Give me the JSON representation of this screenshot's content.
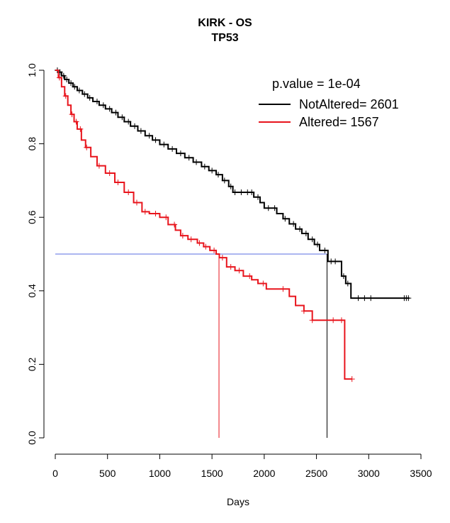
{
  "chart_data": {
    "type": "line",
    "title": "KIRK - OS",
    "subtitle": "TP53",
    "xlabel": "Days",
    "ylabel": "",
    "xlim": [
      0,
      3500
    ],
    "ylim": [
      0,
      1
    ],
    "x_ticks": [
      0,
      500,
      1000,
      1500,
      2000,
      2500,
      3000,
      3500
    ],
    "y_ticks": [
      0.0,
      0.2,
      0.4,
      0.6,
      0.8,
      1.0
    ],
    "y_tick_labels": [
      "0.0",
      "0.2",
      "0.4",
      "0.6",
      "0.8",
      "1.0"
    ],
    "legend": {
      "header": "p.value = 1e-04",
      "placement": "top-right",
      "entries": [
        "NotAltered= 2601",
        "Altered= 1567"
      ]
    },
    "median_line": {
      "y": 0.5,
      "color": "#5a6ee0"
    },
    "series": [
      {
        "name": "NotAltered= 2601",
        "color": "#000000",
        "median": 2601,
        "x": [
          0,
          30,
          60,
          90,
          130,
          170,
          210,
          260,
          310,
          360,
          420,
          480,
          540,
          600,
          660,
          720,
          790,
          860,
          930,
          1000,
          1080,
          1160,
          1240,
          1320,
          1400,
          1470,
          1540,
          1600,
          1660,
          1700,
          1760,
          1830,
          1900,
          1960,
          2000,
          2060,
          2120,
          2180,
          2240,
          2300,
          2360,
          2420,
          2480,
          2530,
          2560,
          2610,
          2740,
          2780,
          2830,
          3390
        ],
        "y": [
          1.0,
          0.995,
          0.985,
          0.975,
          0.965,
          0.955,
          0.945,
          0.935,
          0.925,
          0.915,
          0.905,
          0.895,
          0.885,
          0.872,
          0.86,
          0.848,
          0.835,
          0.822,
          0.81,
          0.798,
          0.786,
          0.774,
          0.762,
          0.75,
          0.738,
          0.727,
          0.716,
          0.7,
          0.684,
          0.668,
          0.668,
          0.668,
          0.655,
          0.64,
          0.625,
          0.625,
          0.61,
          0.596,
          0.582,
          0.568,
          0.556,
          0.54,
          0.526,
          0.51,
          0.51,
          0.48,
          0.44,
          0.42,
          0.38,
          0.38
        ],
        "censor_x": [
          20,
          45,
          80,
          110,
          150,
          185,
          230,
          280,
          330,
          400,
          460,
          520,
          580,
          640,
          700,
          760,
          820,
          900,
          960,
          1040,
          1120,
          1200,
          1280,
          1350,
          1430,
          1500,
          1560,
          1620,
          1680,
          1720,
          1780,
          1840,
          1880,
          1940,
          2040,
          2100,
          2200,
          2280,
          2340,
          2400,
          2460,
          2510,
          2580,
          2640,
          2680,
          2760,
          2800,
          2900,
          2960,
          3020,
          3340,
          3360,
          3380
        ]
      },
      {
        "name": "Altered= 1567",
        "color": "#e8141c",
        "median": 1567,
        "x": [
          0,
          30,
          60,
          90,
          120,
          150,
          180,
          210,
          250,
          290,
          340,
          400,
          480,
          570,
          660,
          750,
          830,
          900,
          1000,
          1080,
          1150,
          1200,
          1270,
          1360,
          1420,
          1480,
          1540,
          1570,
          1640,
          1720,
          1800,
          1880,
          1940,
          2020,
          2100,
          2240,
          2300,
          2380,
          2460,
          2560,
          2620,
          2700,
          2770,
          2840
        ],
        "y": [
          1.0,
          0.98,
          0.955,
          0.93,
          0.905,
          0.88,
          0.86,
          0.84,
          0.81,
          0.79,
          0.765,
          0.74,
          0.72,
          0.695,
          0.668,
          0.64,
          0.615,
          0.61,
          0.6,
          0.58,
          0.565,
          0.55,
          0.54,
          0.53,
          0.52,
          0.51,
          0.5,
          0.49,
          0.465,
          0.455,
          0.44,
          0.43,
          0.42,
          0.405,
          0.405,
          0.385,
          0.36,
          0.345,
          0.32,
          0.32,
          0.32,
          0.32,
          0.16,
          0.16
        ],
        "censor_x": [
          40,
          100,
          160,
          200,
          240,
          300,
          420,
          520,
          600,
          700,
          780,
          860,
          960,
          1060,
          1140,
          1220,
          1300,
          1380,
          1440,
          1520,
          1600,
          1680,
          1760,
          1860,
          1990,
          2180,
          2380,
          2460,
          2660,
          2740,
          2840
        ]
      }
    ]
  }
}
